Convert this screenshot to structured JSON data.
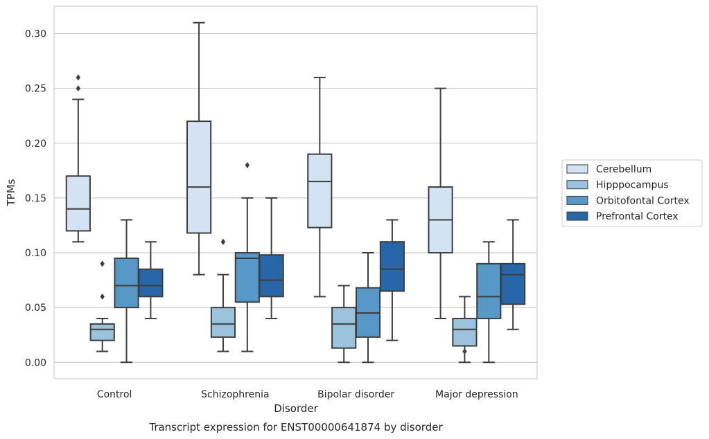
{
  "chart_data": {
    "type": "box",
    "title": "Transcript expression for ENST00000641874 by disorder",
    "xlabel": "Disorder",
    "ylabel": "TPMs",
    "ylim": [
      -0.015,
      0.325
    ],
    "yticks": [
      0.0,
      0.05,
      0.1,
      0.15,
      0.2,
      0.25,
      0.3
    ],
    "ytick_labels": [
      "0.00",
      "0.05",
      "0.10",
      "0.15",
      "0.20",
      "0.25",
      "0.30"
    ],
    "grid": "horizontal",
    "legend_position": "right",
    "categories": [
      "Control",
      "Schizophrenia",
      "Bipolar disorder",
      "Major depression"
    ],
    "series": [
      {
        "name": "Cerebellum",
        "color": "#d4e3f3",
        "boxes": [
          {
            "whisker_low": 0.11,
            "q1": 0.12,
            "median": 0.14,
            "q3": 0.17,
            "whisker_high": 0.24,
            "outliers": [
              0.25,
              0.26
            ]
          },
          {
            "whisker_low": 0.08,
            "q1": 0.118,
            "median": 0.16,
            "q3": 0.22,
            "whisker_high": 0.31,
            "outliers": []
          },
          {
            "whisker_low": 0.06,
            "q1": 0.123,
            "median": 0.165,
            "q3": 0.19,
            "whisker_high": 0.26,
            "outliers": []
          },
          {
            "whisker_low": 0.04,
            "q1": 0.1,
            "median": 0.13,
            "q3": 0.16,
            "whisker_high": 0.25,
            "outliers": []
          }
        ]
      },
      {
        "name": "Hipppocampus",
        "color": "#9ac3de",
        "boxes": [
          {
            "whisker_low": 0.01,
            "q1": 0.02,
            "median": 0.03,
            "q3": 0.035,
            "whisker_high": 0.04,
            "outliers": [
              0.06,
              0.09
            ]
          },
          {
            "whisker_low": 0.01,
            "q1": 0.023,
            "median": 0.035,
            "q3": 0.05,
            "whisker_high": 0.08,
            "outliers": [
              0.11
            ]
          },
          {
            "whisker_low": 0.0,
            "q1": 0.013,
            "median": 0.035,
            "q3": 0.05,
            "whisker_high": 0.07,
            "outliers": []
          },
          {
            "whisker_low": 0.0,
            "q1": 0.015,
            "median": 0.03,
            "q3": 0.04,
            "whisker_high": 0.06,
            "outliers": [
              0.01
            ]
          }
        ]
      },
      {
        "name": "Orbitofontal Cortex",
        "color": "#5797c7",
        "boxes": [
          {
            "whisker_low": 0.0,
            "q1": 0.05,
            "median": 0.07,
            "q3": 0.095,
            "whisker_high": 0.13,
            "outliers": []
          },
          {
            "whisker_low": 0.01,
            "q1": 0.055,
            "median": 0.095,
            "q3": 0.1,
            "whisker_high": 0.15,
            "outliers": [
              0.18
            ]
          },
          {
            "whisker_low": 0.0,
            "q1": 0.023,
            "median": 0.045,
            "q3": 0.068,
            "whisker_high": 0.1,
            "outliers": []
          },
          {
            "whisker_low": 0.0,
            "q1": 0.04,
            "median": 0.06,
            "q3": 0.09,
            "whisker_high": 0.11,
            "outliers": []
          }
        ]
      },
      {
        "name": "Prefrontal Cortex",
        "color": "#2867a7",
        "boxes": [
          {
            "whisker_low": 0.04,
            "q1": 0.06,
            "median": 0.07,
            "q3": 0.085,
            "whisker_high": 0.11,
            "outliers": []
          },
          {
            "whisker_low": 0.04,
            "q1": 0.06,
            "median": 0.075,
            "q3": 0.098,
            "whisker_high": 0.15,
            "outliers": []
          },
          {
            "whisker_low": 0.02,
            "q1": 0.065,
            "median": 0.085,
            "q3": 0.11,
            "whisker_high": 0.13,
            "outliers": []
          },
          {
            "whisker_low": 0.03,
            "q1": 0.053,
            "median": 0.08,
            "q3": 0.09,
            "whisker_high": 0.13,
            "outliers": []
          }
        ]
      }
    ]
  }
}
